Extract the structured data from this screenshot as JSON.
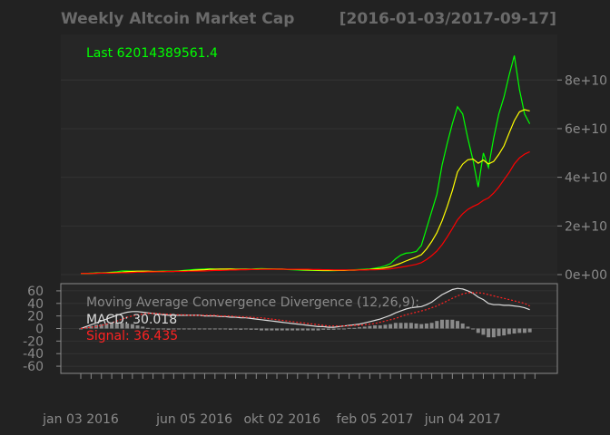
{
  "colors": {
    "background": "#222222",
    "panel": "#262626",
    "grid": "#333333",
    "price": "#00ff00",
    "sma_fast": "#ffff00",
    "sma_slow": "#ff0000",
    "macd": "#dddddd",
    "signal": "#ff2222",
    "histogram": "#8a8a8a",
    "text": "#8a8a8a",
    "title": "#6a6a6a"
  },
  "chart_data": {
    "type": "line",
    "title": "Weekly Altcoin Market Cap",
    "date_range": "[2016-01-03/2017-09-17]",
    "last_value_label": "Last 62014389561.4",
    "x_tick_labels": [
      "jan 03 2016",
      "jun 05 2016",
      "okt 02 2016",
      "feb 05 2017",
      "jun 04 2017"
    ],
    "x_tick_weeks": [
      0,
      22,
      39,
      57,
      74
    ],
    "main_panel": {
      "ylim": [
        0,
        95000000000
      ],
      "y_tick_labels": [
        "0e+00",
        "2e+10",
        "4e+10",
        "6e+10",
        "8e+10"
      ],
      "y_tick_values": [
        0,
        20000000000,
        40000000000,
        60000000000,
        80000000000
      ],
      "series": [
        {
          "style": "price",
          "values": [
            0.5,
            0.5,
            0.6,
            0.6,
            0.7,
            0.8,
            1.0,
            1.2,
            1.5,
            1.5,
            1.4,
            1.3,
            1.3,
            1.3,
            1.2,
            1.3,
            1.4,
            1.4,
            1.4,
            1.5,
            1.7,
            1.9,
            2.1,
            2.2,
            2.3,
            2.4,
            2.3,
            2.2,
            2.2,
            2.3,
            2.2,
            2.1,
            2.1,
            2.2,
            2.4,
            2.5,
            2.4,
            2.3,
            2.2,
            2.2,
            2.1,
            2.0,
            1.9,
            1.8,
            1.8,
            1.7,
            1.7,
            1.6,
            1.6,
            1.6,
            1.7,
            1.8,
            1.9,
            2.0,
            2.1,
            2.2,
            2.3,
            2.6,
            3.0,
            3.6,
            4.5,
            6.5,
            8.0,
            8.8,
            9.0,
            9.5,
            12.0,
            19.0,
            26.0,
            33.0,
            45.0,
            54.0,
            62.0,
            69.0,
            66.0,
            56.0,
            47.0,
            36.0,
            50.0,
            44.0,
            56.0,
            66.0,
            73.0,
            82.0,
            90.0,
            76.0,
            66.0,
            62.0
          ]
        },
        {
          "style": "sma_fast",
          "values": [
            0.5,
            0.5,
            0.5,
            0.6,
            0.6,
            0.7,
            0.8,
            0.9,
            1.0,
            1.2,
            1.3,
            1.4,
            1.4,
            1.4,
            1.3,
            1.3,
            1.3,
            1.3,
            1.3,
            1.4,
            1.5,
            1.6,
            1.8,
            1.9,
            2.0,
            2.2,
            2.2,
            2.3,
            2.3,
            2.3,
            2.2,
            2.2,
            2.2,
            2.2,
            2.2,
            2.3,
            2.3,
            2.3,
            2.3,
            2.3,
            2.2,
            2.2,
            2.1,
            2.0,
            1.9,
            1.9,
            1.8,
            1.7,
            1.7,
            1.7,
            1.7,
            1.7,
            1.8,
            1.8,
            1.9,
            2.0,
            2.1,
            2.3,
            2.5,
            2.8,
            3.2,
            3.9,
            4.7,
            5.6,
            6.4,
            7.2,
            8.2,
            10.5,
            13.6,
            17.2,
            22.1,
            28.0,
            34.5,
            42.2,
            45.4,
            47.2,
            47.5,
            45.8,
            47.1,
            45.5,
            46.5,
            49.4,
            52.9,
            58.2,
            63.3,
            66.9,
            67.8,
            67.3
          ]
        },
        {
          "style": "sma_slow",
          "values": [
            0.5,
            0.5,
            0.5,
            0.5,
            0.6,
            0.6,
            0.6,
            0.7,
            0.8,
            0.8,
            0.9,
            1.0,
            1.0,
            1.1,
            1.1,
            1.2,
            1.2,
            1.3,
            1.3,
            1.3,
            1.3,
            1.4,
            1.4,
            1.5,
            1.5,
            1.6,
            1.7,
            1.7,
            1.8,
            1.9,
            1.9,
            2.0,
            2.0,
            2.1,
            2.1,
            2.2,
            2.2,
            2.2,
            2.2,
            2.2,
            2.2,
            2.2,
            2.2,
            2.2,
            2.2,
            2.1,
            2.1,
            2.0,
            2.0,
            1.9,
            1.9,
            1.9,
            1.9,
            1.9,
            1.9,
            1.9,
            2.0,
            2.0,
            2.1,
            2.2,
            2.4,
            2.7,
            3.0,
            3.4,
            3.8,
            4.2,
            4.9,
            6.2,
            7.8,
            9.7,
            12.3,
            15.5,
            18.9,
            22.5,
            25.0,
            26.8,
            28.0,
            29.0,
            30.5,
            31.5,
            33.5,
            36.0,
            39.0,
            42.0,
            45.5,
            48.0,
            49.5,
            50.5
          ]
        }
      ]
    },
    "macd_panel": {
      "title": "Moving Average Convergence Divergence (12,26,9):",
      "macd_label": "MACD: 30.018",
      "signal_label": "Signal: 36.435",
      "ylim": [
        -70,
        70
      ],
      "y_tick_labels": [
        "60",
        "40",
        "20",
        "0",
        "-20",
        "-40",
        "-60"
      ],
      "y_tick_values": [
        60,
        40,
        20,
        0,
        -20,
        -40,
        -60
      ],
      "macd": [
        0,
        3,
        6,
        9,
        12,
        15,
        18,
        21,
        24,
        26,
        27,
        27,
        26,
        25,
        24,
        23,
        22,
        21,
        21,
        21,
        21,
        21,
        21,
        21,
        20,
        20,
        20,
        19,
        19,
        18,
        18,
        17,
        17,
        16,
        15,
        14,
        13,
        12,
        11,
        10,
        9,
        8,
        7,
        6,
        5,
        4,
        3,
        3,
        2,
        2,
        3,
        4,
        5,
        6,
        7,
        9,
        11,
        13,
        15,
        18,
        21,
        25,
        28,
        31,
        33,
        34,
        35,
        38,
        42,
        48,
        54,
        58,
        62,
        64,
        63,
        60,
        56,
        50,
        46,
        40,
        38,
        38,
        37,
        37,
        36,
        35,
        33,
        30
      ],
      "signal": [
        0,
        1,
        2,
        3,
        5,
        7,
        9,
        12,
        15,
        18,
        20,
        22,
        23,
        24,
        24,
        24,
        23,
        23,
        22,
        22,
        22,
        21,
        21,
        21,
        21,
        21,
        21,
        20,
        20,
        20,
        19,
        19,
        18,
        18,
        17,
        17,
        16,
        15,
        14,
        13,
        12,
        11,
        10,
        9,
        8,
        7,
        6,
        5,
        4,
        4,
        4,
        4,
        4,
        5,
        5,
        6,
        7,
        8,
        10,
        12,
        14,
        16,
        19,
        22,
        24,
        26,
        28,
        30,
        33,
        36,
        40,
        44,
        48,
        52,
        55,
        57,
        57,
        57,
        56,
        54,
        52,
        50,
        48,
        46,
        44,
        42,
        40,
        36
      ],
      "histogram": [
        0,
        2,
        4,
        6,
        7,
        8,
        9,
        9,
        9,
        8,
        7,
        5,
        3,
        1,
        0,
        -1,
        -1,
        -2,
        -1,
        -1,
        -1,
        0,
        0,
        0,
        -1,
        -1,
        -1,
        -1,
        -1,
        -2,
        -1,
        -2,
        -1,
        -2,
        -2,
        -3,
        -3,
        -3,
        -3,
        -3,
        -3,
        -3,
        -3,
        -3,
        -3,
        -3,
        -3,
        -2,
        -2,
        -2,
        -1,
        0,
        1,
        1,
        2,
        3,
        4,
        5,
        5,
        6,
        7,
        9,
        9,
        9,
        9,
        8,
        7,
        8,
        9,
        12,
        14,
        14,
        14,
        12,
        8,
        3,
        -1,
        -7,
        -10,
        -14,
        -14,
        -12,
        -11,
        -9,
        -8,
        -7,
        -7,
        -6
      ]
    }
  }
}
